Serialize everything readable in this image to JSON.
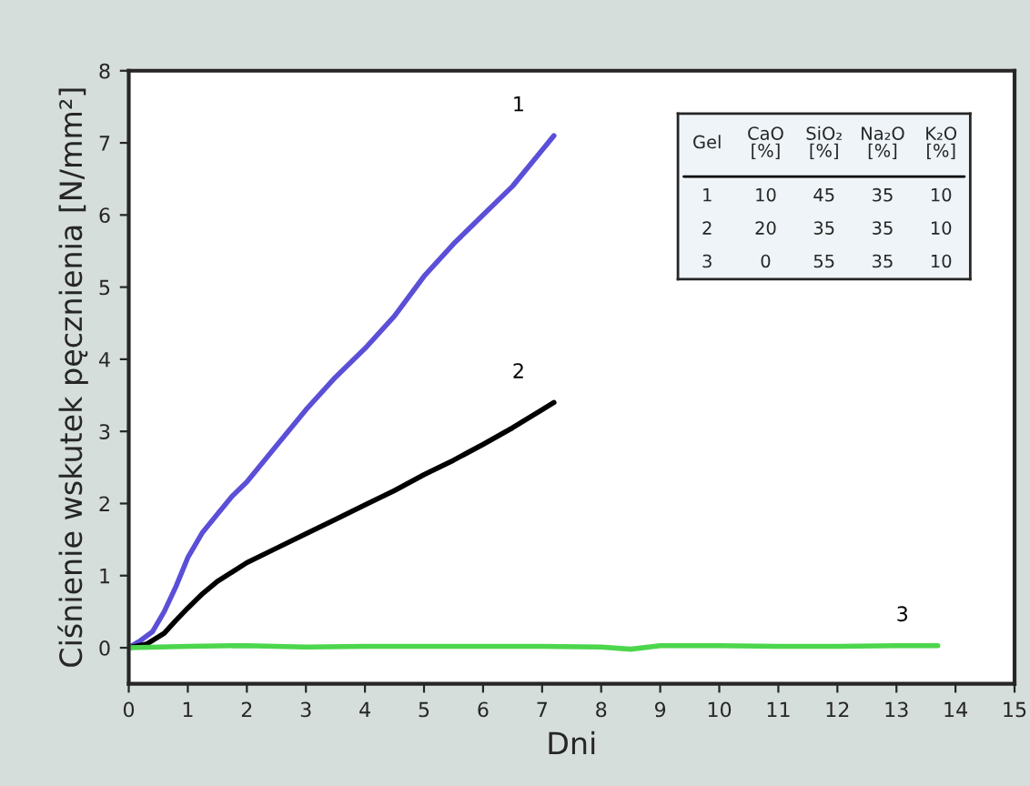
{
  "chart_data": {
    "type": "line",
    "xlabel": "Dni",
    "ylabel": "Ciśnienie wskutek pęcznienia [N/mm²]",
    "xlim": [
      0,
      15
    ],
    "xticks": [
      0,
      1,
      2,
      3,
      4,
      5,
      6,
      7,
      8,
      9,
      10,
      11,
      12,
      13,
      14,
      15
    ],
    "ylim": [
      -0.5,
      8
    ],
    "yticks": [
      0,
      1,
      2,
      3,
      4,
      5,
      6,
      7,
      8
    ],
    "grid": false,
    "legend": false,
    "marker": "none",
    "line_style": "solid",
    "series": [
      {
        "name": "1",
        "color": "#5b4fd8",
        "x": [
          0,
          0.2,
          0.4,
          0.6,
          0.8,
          1,
          1.25,
          1.5,
          1.75,
          2,
          2.5,
          3,
          3.5,
          4,
          4.5,
          5,
          5.5,
          6,
          6.5,
          7,
          7.2
        ],
        "values": [
          0,
          0.1,
          0.22,
          0.5,
          0.85,
          1.25,
          1.6,
          1.85,
          2.1,
          2.3,
          2.8,
          3.3,
          3.75,
          4.15,
          4.6,
          5.15,
          5.6,
          6.0,
          6.4,
          6.9,
          7.1
        ]
      },
      {
        "name": "2",
        "color": "#000000",
        "x": [
          0,
          0.3,
          0.6,
          0.8,
          1,
          1.25,
          1.5,
          1.75,
          2,
          2.5,
          3,
          3.5,
          4,
          4.5,
          5,
          5.5,
          6,
          6.5,
          7,
          7.2
        ],
        "values": [
          0,
          0.05,
          0.2,
          0.38,
          0.55,
          0.75,
          0.92,
          1.05,
          1.18,
          1.38,
          1.58,
          1.78,
          1.98,
          2.18,
          2.4,
          2.6,
          2.82,
          3.05,
          3.3,
          3.4
        ]
      },
      {
        "name": "3",
        "color": "#4cd64c",
        "x": [
          0,
          1,
          2,
          3,
          4,
          5,
          6,
          7,
          8,
          8.5,
          9,
          10,
          11,
          12,
          13,
          13.7
        ],
        "values": [
          0,
          0.02,
          0.03,
          0.01,
          0.02,
          0.02,
          0.02,
          0.02,
          0.01,
          -0.02,
          0.03,
          0.03,
          0.02,
          0.02,
          0.03,
          0.03
        ]
      }
    ],
    "annotations": [
      "Gel",
      "CaO\n[%]",
      "SiO₂\n[%]",
      "Na₂O\n[%]",
      "K₂O\n[%]",
      "1",
      "10",
      "45",
      "35",
      "10",
      "2",
      "20",
      "35",
      "35",
      "10",
      "3",
      "0",
      "55",
      "35",
      "10"
    ]
  }
}
